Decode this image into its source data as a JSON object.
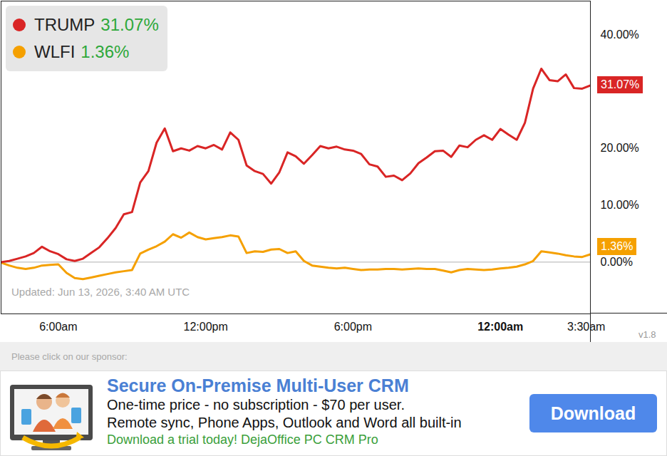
{
  "chart_data": {
    "type": "line",
    "updated": "Updated: Jun 13, 2026, 3:40 AM UTC",
    "version": "v1.8",
    "legend": "top-left",
    "x": [
      "2026-06-12T03:40:00Z",
      "2026-06-12T04:00:00Z",
      "2026-06-12T04:20:00Z",
      "2026-06-12T04:40:00Z",
      "2026-06-12T05:00:00Z",
      "2026-06-12T05:20:00Z",
      "2026-06-12T05:40:00Z",
      "2026-06-12T06:00:00Z",
      "2026-06-12T06:20:00Z",
      "2026-06-12T06:40:00Z",
      "2026-06-12T07:00:00Z",
      "2026-06-12T07:20:00Z",
      "2026-06-12T07:40:00Z",
      "2026-06-12T08:00:00Z",
      "2026-06-12T08:20:00Z",
      "2026-06-12T08:40:00Z",
      "2026-06-12T09:00:00Z",
      "2026-06-12T09:20:00Z",
      "2026-06-12T09:40:00Z",
      "2026-06-12T10:00:00Z",
      "2026-06-12T10:20:00Z",
      "2026-06-12T10:40:00Z",
      "2026-06-12T11:00:00Z",
      "2026-06-12T11:20:00Z",
      "2026-06-12T11:40:00Z",
      "2026-06-12T12:00:00Z",
      "2026-06-12T12:20:00Z",
      "2026-06-12T12:40:00Z",
      "2026-06-12T13:00:00Z",
      "2026-06-12T13:20:00Z",
      "2026-06-12T13:40:00Z",
      "2026-06-12T14:00:00Z",
      "2026-06-12T14:20:00Z",
      "2026-06-12T14:40:00Z",
      "2026-06-12T15:00:00Z",
      "2026-06-12T15:20:00Z",
      "2026-06-12T15:40:00Z",
      "2026-06-12T16:00:00Z",
      "2026-06-12T16:20:00Z",
      "2026-06-12T16:40:00Z",
      "2026-06-12T17:00:00Z",
      "2026-06-12T17:20:00Z",
      "2026-06-12T17:40:00Z",
      "2026-06-12T18:00:00Z",
      "2026-06-12T18:20:00Z",
      "2026-06-12T18:40:00Z",
      "2026-06-12T19:00:00Z",
      "2026-06-12T19:20:00Z",
      "2026-06-12T19:40:00Z",
      "2026-06-12T20:00:00Z",
      "2026-06-12T20:20:00Z",
      "2026-06-12T20:40:00Z",
      "2026-06-12T21:00:00Z",
      "2026-06-12T21:20:00Z",
      "2026-06-12T21:40:00Z",
      "2026-06-12T22:00:00Z",
      "2026-06-12T22:20:00Z",
      "2026-06-12T22:40:00Z",
      "2026-06-12T23:00:00Z",
      "2026-06-12T23:20:00Z",
      "2026-06-12T23:40:00Z",
      "2026-06-13T00:00:00Z",
      "2026-06-13T00:20:00Z",
      "2026-06-13T00:40:00Z",
      "2026-06-13T01:00:00Z",
      "2026-06-13T01:20:00Z",
      "2026-06-13T01:40:00Z",
      "2026-06-13T02:00:00Z",
      "2026-06-13T02:20:00Z",
      "2026-06-13T02:40:00Z",
      "2026-06-13T03:00:00Z",
      "2026-06-13T03:20:00Z",
      "2026-06-13T03:40:00Z"
    ],
    "xlim": [
      "2026-06-12T03:40:00Z",
      "2026-06-13T03:40:00Z"
    ],
    "xticks": [
      {
        "value": "2026-06-12T06:00:00Z",
        "label": "6:00am"
      },
      {
        "value": "2026-06-12T12:00:00Z",
        "label": "12:00pm"
      },
      {
        "value": "2026-06-12T18:00:00Z",
        "label": "6:00pm"
      },
      {
        "value": "2026-06-13T00:00:00Z",
        "label": "12:00am"
      },
      {
        "value": "2026-06-13T03:30:00Z",
        "label": "3:30am"
      }
    ],
    "ylim": [
      -9.1,
      45.9
    ],
    "yticks": [
      {
        "value": 0,
        "label": "0.00%"
      },
      {
        "value": 10,
        "label": "10.00%"
      },
      {
        "value": 20,
        "label": "20.00%"
      },
      {
        "value": 40,
        "label": "40.00%"
      }
    ],
    "series": [
      {
        "name": "TRUMP",
        "color": "#d92525",
        "current": {
          "value": 31.07,
          "label": "31.07%"
        },
        "values": [
          0.0,
          0.2,
          0.6,
          1.0,
          1.6,
          2.7,
          1.9,
          1.4,
          0.5,
          0.2,
          0.6,
          1.6,
          2.6,
          4.2,
          6.0,
          8.4,
          8.8,
          14.0,
          16.0,
          21.0,
          23.5,
          19.5,
          20.0,
          19.6,
          20.4,
          20.0,
          20.6,
          19.8,
          22.8,
          21.5,
          17.0,
          16.0,
          15.5,
          13.8,
          15.8,
          19.3,
          18.6,
          17.3,
          18.8,
          20.4,
          20.0,
          20.3,
          19.8,
          19.6,
          19.0,
          17.2,
          16.8,
          15.0,
          15.2,
          14.4,
          15.6,
          17.4,
          18.4,
          19.5,
          19.6,
          18.5,
          20.5,
          20.2,
          21.5,
          22.3,
          21.5,
          23.4,
          22.4,
          21.5,
          24.5,
          30.5,
          34.0,
          32.0,
          31.8,
          33.0,
          30.6,
          30.5,
          31.07
        ]
      },
      {
        "name": "WLFI",
        "color": "#f5a000",
        "current": {
          "value": 1.36,
          "label": "1.36%"
        },
        "values": [
          -0.1,
          -0.6,
          -1.0,
          -1.2,
          -1.0,
          -0.6,
          -0.5,
          -0.4,
          -1.9,
          -2.8,
          -3.0,
          -2.7,
          -2.4,
          -2.1,
          -1.8,
          -1.6,
          -1.4,
          1.5,
          2.2,
          2.8,
          3.6,
          4.9,
          4.3,
          5.2,
          4.4,
          4.0,
          4.2,
          4.4,
          4.7,
          4.5,
          1.6,
          1.9,
          1.8,
          2.2,
          2.3,
          1.6,
          1.9,
          0.2,
          -0.6,
          -0.8,
          -1.0,
          -1.1,
          -1.0,
          -1.2,
          -1.4,
          -1.3,
          -1.3,
          -1.2,
          -1.2,
          -1.3,
          -1.2,
          -1.1,
          -1.2,
          -1.2,
          -1.5,
          -1.8,
          -1.4,
          -1.2,
          -1.3,
          -1.4,
          -1.3,
          -1.1,
          -1.0,
          -0.8,
          -0.4,
          0.2,
          1.9,
          1.7,
          1.5,
          1.2,
          1.0,
          0.9,
          1.36
        ]
      }
    ]
  },
  "sponsor": {
    "prompt": "Please click on our sponsor:",
    "title": "Secure On-Premise Multi-User CRM",
    "lines": [
      "One-time price - no subscription - $70 per user.",
      "Remote sync, Phone Apps, Outlook and Word all built-in"
    ],
    "tagline": "Download a trial today! DejaOffice PC CRM Pro",
    "button": "Download"
  }
}
